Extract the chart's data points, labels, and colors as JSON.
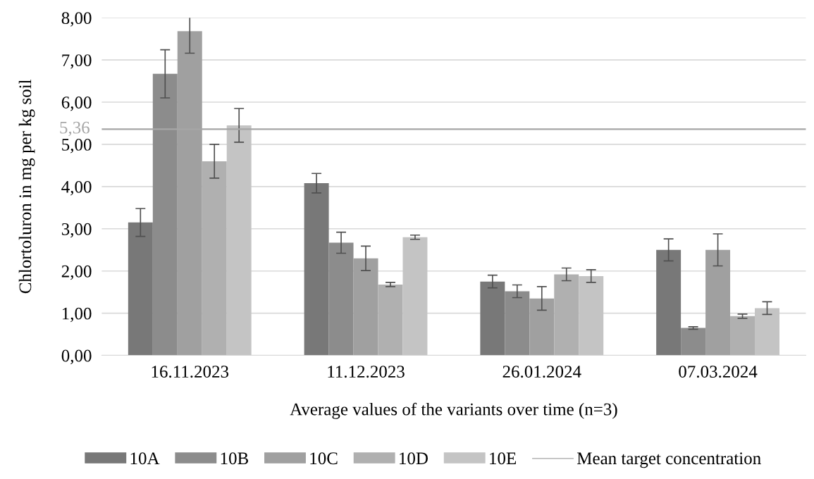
{
  "chart_data": {
    "type": "bar",
    "xlabel": "Average values of the variants over time (n=3)",
    "ylabel": "Chlortoluron in mg per kg soil",
    "categories": [
      "16.11.2023",
      "11.12.2023",
      "26.01.2024",
      "07.03.2024"
    ],
    "series": [
      {
        "name": "10A",
        "color": "#787878",
        "values": [
          3.15,
          4.08,
          1.75,
          2.5
        ],
        "errors": [
          0.33,
          0.23,
          0.15,
          0.26
        ]
      },
      {
        "name": "10B",
        "color": "#8c8c8c",
        "values": [
          6.67,
          2.67,
          1.52,
          0.65
        ],
        "errors": [
          0.57,
          0.25,
          0.15,
          0.03
        ]
      },
      {
        "name": "10C",
        "color": "#a0a0a0",
        "values": [
          7.68,
          2.3,
          1.35,
          2.5
        ],
        "errors": [
          0.52,
          0.29,
          0.28,
          0.38
        ]
      },
      {
        "name": "10D",
        "color": "#b0b0b0",
        "values": [
          4.6,
          1.68,
          1.92,
          0.93
        ],
        "errors": [
          0.4,
          0.05,
          0.15,
          0.05
        ]
      },
      {
        "name": "10E",
        "color": "#c4c4c4",
        "values": [
          5.45,
          2.8,
          1.88,
          1.12
        ],
        "errors": [
          0.4,
          0.05,
          0.15,
          0.15
        ]
      }
    ],
    "ref_lines": [
      {
        "axis": "y",
        "value": 5.36,
        "label": "Mean target concentration",
        "color": "#a6a6a6"
      }
    ],
    "annotations": [
      "5,36"
    ],
    "ylim": [
      0,
      8
    ],
    "yticks": [
      {
        "value": 0,
        "label": "0,00"
      },
      {
        "value": 1,
        "label": "1,00"
      },
      {
        "value": 2,
        "label": "2,00"
      },
      {
        "value": 3,
        "label": "3,00"
      },
      {
        "value": 4,
        "label": "4,00"
      },
      {
        "value": 5,
        "label": "5,00"
      },
      {
        "value": 6,
        "label": "6,00"
      },
      {
        "value": 7,
        "label": "7,00"
      },
      {
        "value": 8,
        "label": "8,00"
      }
    ],
    "grid": "y",
    "legend": "bottom"
  }
}
